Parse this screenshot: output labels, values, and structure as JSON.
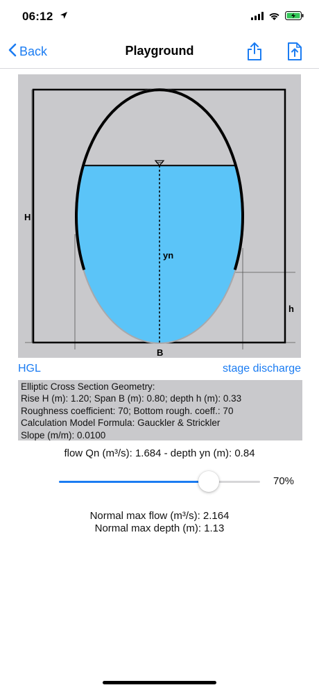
{
  "status_bar": {
    "time": "06:12"
  },
  "nav": {
    "back_label": "Back",
    "title": "Playground"
  },
  "diagram": {
    "label_H": "H",
    "label_yn": "yn",
    "label_h": "h",
    "label_B": "B",
    "background_color": "#c9c9cc",
    "water_color": "#5bc4f8",
    "water_level_fraction": 0.7
  },
  "links": {
    "hgl": "HGL",
    "stage_discharge": "stage discharge"
  },
  "info": {
    "lines": [
      "Elliptic Cross Section Geometry:",
      "Rise H (m): 1.20; Span B (m): 0.80; depth h (m): 0.33",
      "Roughness coefficient: 70; Bottom rough. coeff.: 70",
      "Calculation Model Formula: Gauckler & Strickler",
      "Slope (m/m): 0.0100"
    ]
  },
  "result": {
    "flow_line": "flow Qn (m³/s): 1.684 - depth yn (m): 0.84"
  },
  "slider": {
    "value": 0.7,
    "label": "70%"
  },
  "max": {
    "flow": "Normal max flow (m³/s): 2.164",
    "depth": "Normal max depth (m): 1.13"
  },
  "accent_color": "#1b7cf2"
}
